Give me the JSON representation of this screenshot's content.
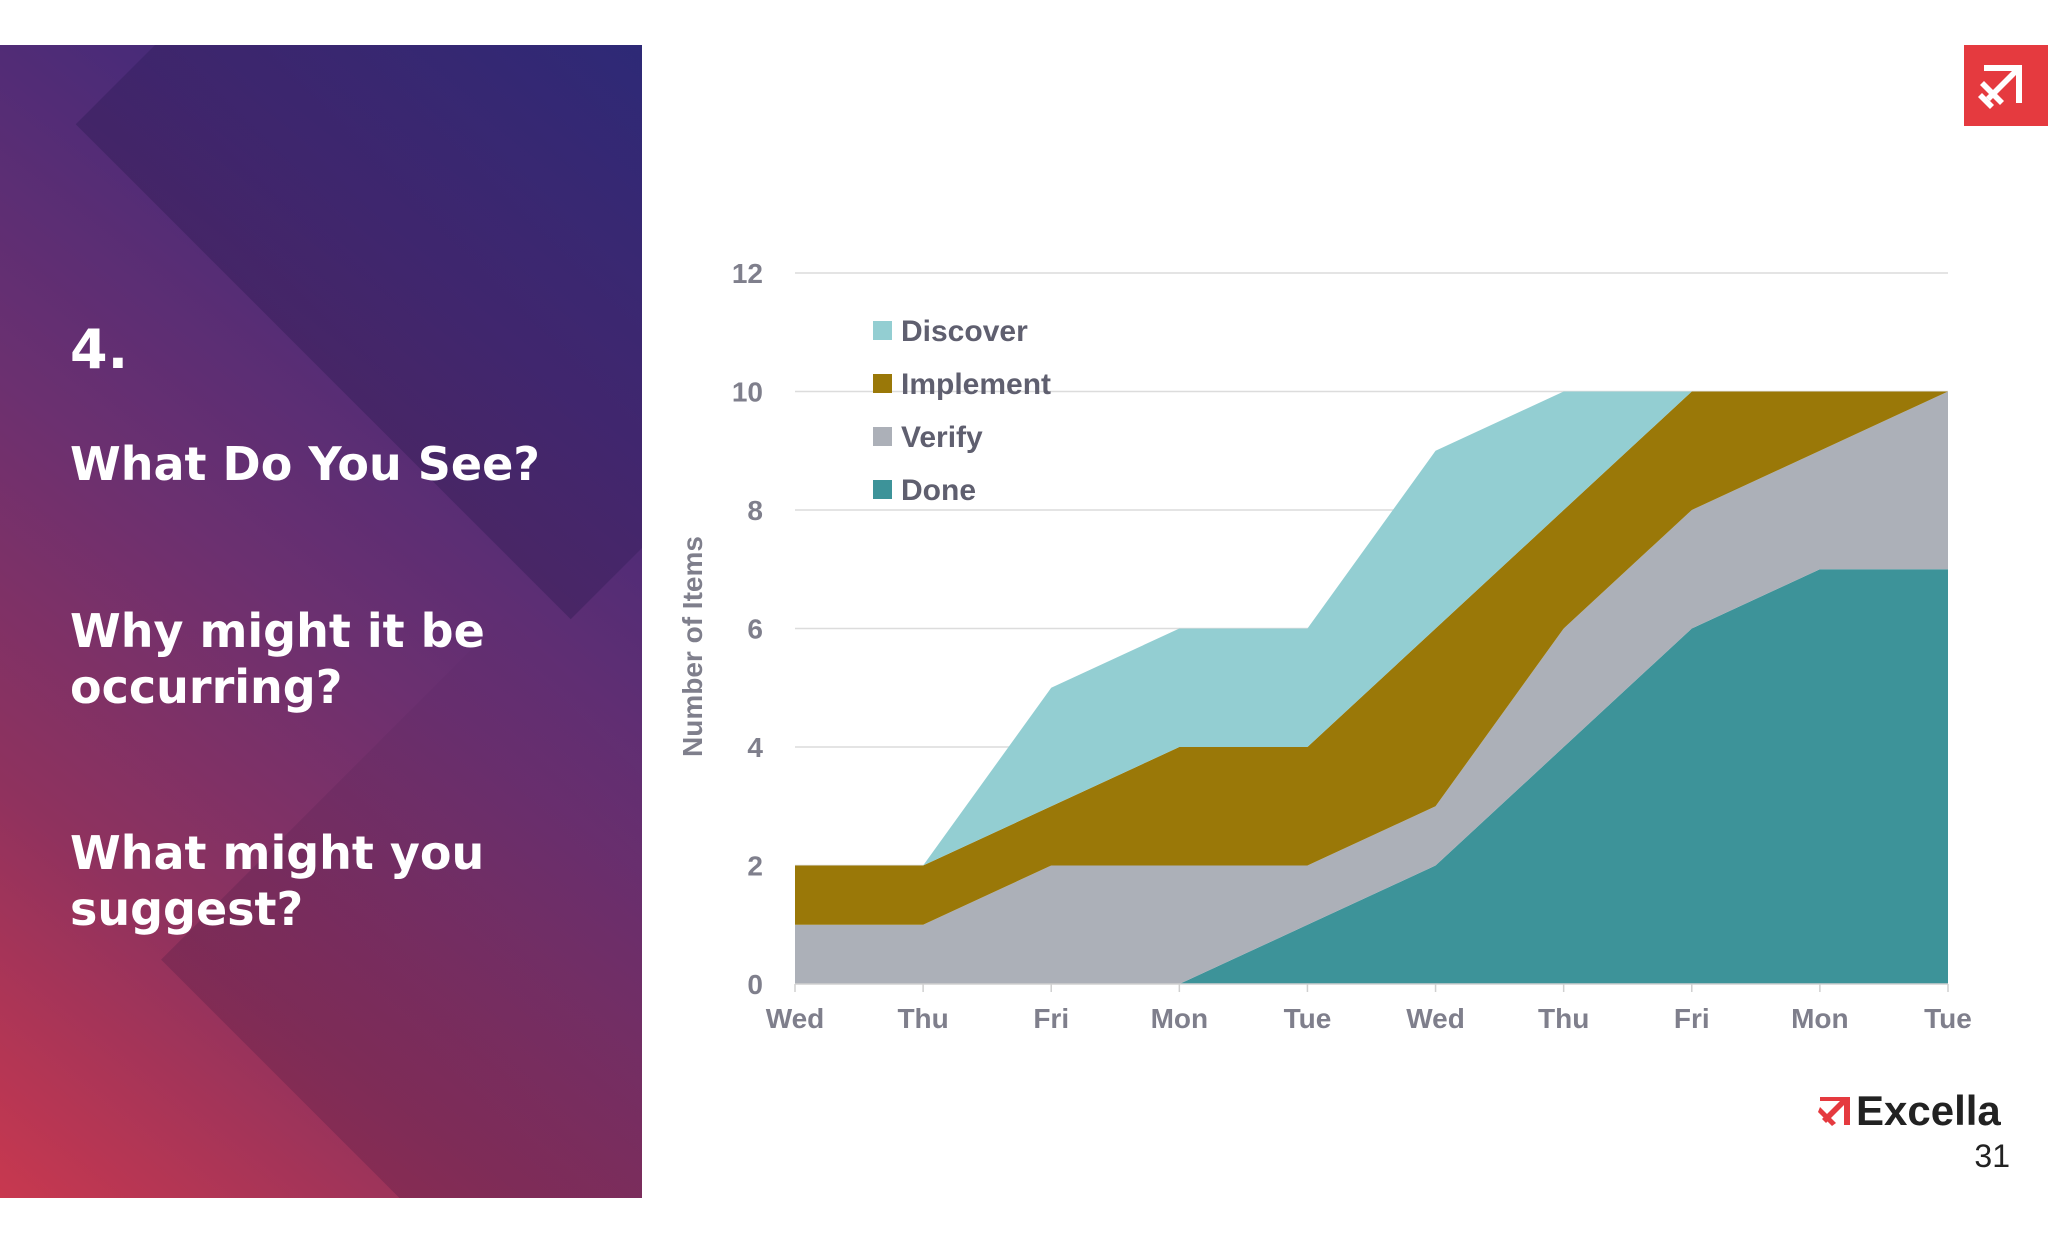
{
  "slide": {
    "number": "4.",
    "question1": "What Do You See?",
    "question2": "Why might it be occurring?",
    "question3": "What might you suggest?",
    "brand": "Excella",
    "page": "31"
  },
  "colors": {
    "discover": "#93ced2",
    "implement": "#9a7808",
    "verify": "#acb0b8",
    "done": "#3d9399",
    "brand_red": "#e53a3f"
  },
  "chart_data": {
    "type": "area",
    "stacked": true,
    "title": "",
    "xlabel": "",
    "ylabel": "Number of Items",
    "ylim": [
      0,
      12
    ],
    "yticks": [
      0,
      2,
      4,
      6,
      8,
      10,
      12
    ],
    "categories": [
      "Wed",
      "Thu",
      "Fri",
      "Mon",
      "Tue",
      "Wed",
      "Thu",
      "Fri",
      "Mon",
      "Tue"
    ],
    "legend_position": "top-left",
    "series": [
      {
        "name": "Done",
        "values": [
          0,
          0,
          0,
          0,
          1,
          2,
          4,
          6,
          7,
          7
        ]
      },
      {
        "name": "Verify",
        "values": [
          1,
          1,
          2,
          2,
          1,
          1,
          2,
          2,
          2,
          3
        ]
      },
      {
        "name": "Implement",
        "values": [
          1,
          1,
          1,
          2,
          2,
          3,
          2,
          2,
          1,
          0
        ]
      },
      {
        "name": "Discover",
        "values": [
          0,
          0,
          2,
          2,
          2,
          3,
          2,
          0,
          0,
          0
        ]
      }
    ],
    "legend": [
      "Discover",
      "Implement",
      "Verify",
      "Done"
    ]
  }
}
